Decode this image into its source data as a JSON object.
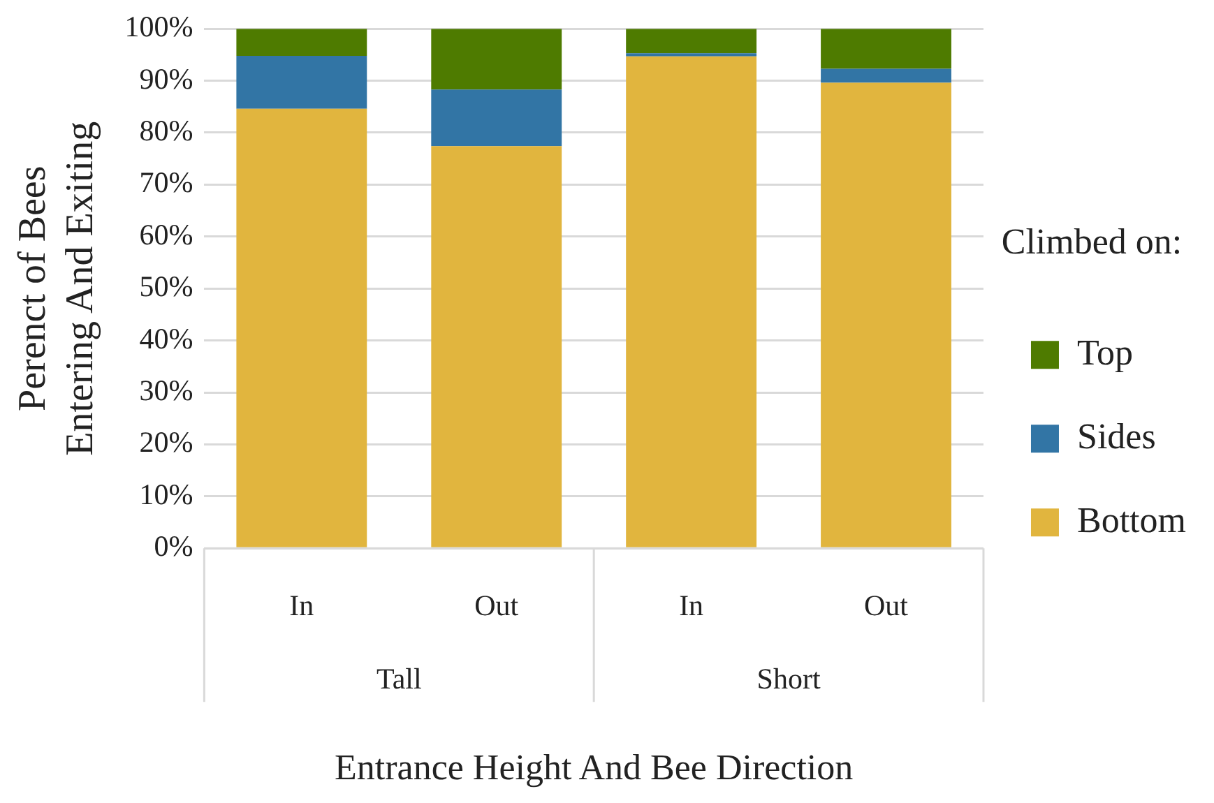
{
  "chart_data": {
    "type": "bar",
    "stacked": true,
    "xlabel": "Entrance Height And Bee Direction",
    "ylabel": "Perenct of Bees\nEntering And Exiting",
    "legend_title": "Climbed on:",
    "legend": "right",
    "grid": "y",
    "categories": [
      "In",
      "Out",
      "In",
      "Out"
    ],
    "annotations": [
      "Tall",
      "Short"
    ],
    "ylim": [
      0,
      100
    ],
    "yticks": [
      {
        "value": 0,
        "label": "0%"
      },
      {
        "value": 10,
        "label": "10%"
      },
      {
        "value": 20,
        "label": "20%"
      },
      {
        "value": 30,
        "label": "30%"
      },
      {
        "value": 40,
        "label": "40%"
      },
      {
        "value": 50,
        "label": "50%"
      },
      {
        "value": 60,
        "label": "60%"
      },
      {
        "value": 70,
        "label": "70%"
      },
      {
        "value": 80,
        "label": "80%"
      },
      {
        "value": 90,
        "label": "90%"
      },
      {
        "value": 100,
        "label": "100%"
      }
    ],
    "series": [
      {
        "name": "Bottom",
        "color": "#e1b53e",
        "values": [
          84.6,
          77.4,
          94.7,
          89.6
        ]
      },
      {
        "name": "Sides",
        "color": "#3275a5",
        "values": [
          10.2,
          10.9,
          0.6,
          2.7
        ]
      },
      {
        "name": "Top",
        "color": "#4e7b00",
        "values": [
          5.2,
          11.7,
          4.7,
          7.7
        ]
      }
    ]
  }
}
